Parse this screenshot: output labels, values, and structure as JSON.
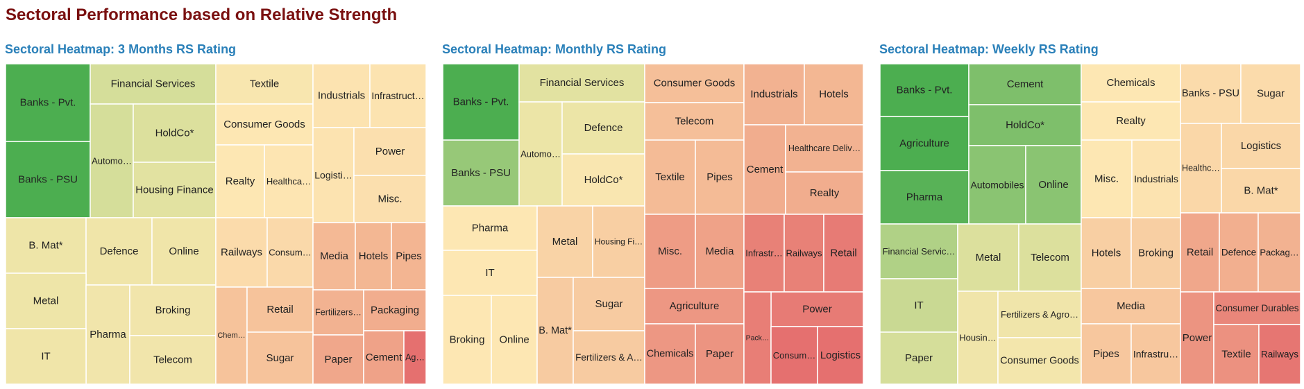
{
  "page_title": "Sectoral Performance based on Relative Strength",
  "chart_data": [
    {
      "type": "treemap",
      "title": "Sectoral Heatmap: 3 Months RS Rating",
      "color_scale": [
        "#4cae50",
        "#e8e4a4",
        "#fde7b3",
        "#f3b592",
        "#e5706f"
      ],
      "tiles": [
        {
          "label": "Banks - Pvt.",
          "score": 0.0
        },
        {
          "label": "Banks - PSU",
          "score": 0.0
        },
        {
          "label": "Financial Services",
          "score": 0.22
        },
        {
          "label": "Automo…",
          "score": 0.22
        },
        {
          "label": "HoldCo*",
          "score": 0.23
        },
        {
          "label": "Housing Finance",
          "score": 0.24
        },
        {
          "label": "Textile",
          "score": 0.44
        },
        {
          "label": "Consumer Goods",
          "score": 0.5
        },
        {
          "label": "Realty",
          "score": 0.5
        },
        {
          "label": "Healthca…",
          "score": 0.51
        },
        {
          "label": "Industrials",
          "score": 0.52
        },
        {
          "label": "Infrastruct…",
          "score": 0.52
        },
        {
          "label": "Logisti…",
          "score": 0.52
        },
        {
          "label": "Power",
          "score": 0.54
        },
        {
          "label": "Misc.",
          "score": 0.54
        },
        {
          "label": "B. Mat*",
          "score": 0.32
        },
        {
          "label": "Defence",
          "score": 0.34
        },
        {
          "label": "Online",
          "score": 0.34
        },
        {
          "label": "Metal",
          "score": 0.32
        },
        {
          "label": "Pharma",
          "score": 0.36
        },
        {
          "label": "Broking",
          "score": 0.36
        },
        {
          "label": "IT",
          "score": 0.34
        },
        {
          "label": "Telecom",
          "score": 0.36
        },
        {
          "label": "Railways",
          "score": 0.56
        },
        {
          "label": "Consum…",
          "score": 0.57
        },
        {
          "label": "Media",
          "score": 0.73
        },
        {
          "label": "Hotels",
          "score": 0.74
        },
        {
          "label": "Pipes",
          "score": 0.75
        },
        {
          "label": "Chem…",
          "score": 0.68
        },
        {
          "label": "Retail",
          "score": 0.68
        },
        {
          "label": "Fertilizers…",
          "score": 0.76
        },
        {
          "label": "Packaging",
          "score": 0.78
        },
        {
          "label": "Sugar",
          "score": 0.68
        },
        {
          "label": "Paper",
          "score": 0.8
        },
        {
          "label": "Cement",
          "score": 0.82
        },
        {
          "label": "Ag…",
          "score": 1.0
        }
      ]
    },
    {
      "type": "treemap",
      "title": "Sectoral Heatmap: Monthly RS Rating",
      "color_scale": [
        "#4cae50",
        "#e8e4a4",
        "#fde7b3",
        "#f3b592",
        "#e5706f"
      ],
      "tiles": [
        {
          "label": "Banks - Pvt.",
          "score": 0.0
        },
        {
          "label": "Banks - PSU",
          "score": 0.12
        },
        {
          "label": "Financial Services",
          "score": 0.24
        },
        {
          "label": "Automo…",
          "score": 0.3
        },
        {
          "label": "Defence",
          "score": 0.3
        },
        {
          "label": "HoldCo*",
          "score": 0.45
        },
        {
          "label": "Pharma",
          "score": 0.5
        },
        {
          "label": "IT",
          "score": 0.5
        },
        {
          "label": "Broking",
          "score": 0.5
        },
        {
          "label": "Online",
          "score": 0.5
        },
        {
          "label": "Metal",
          "score": 0.6
        },
        {
          "label": "Housing Fi…",
          "score": 0.62
        },
        {
          "label": "B. Mat*",
          "score": 0.64
        },
        {
          "label": "Sugar",
          "score": 0.64
        },
        {
          "label": "Fertilizers & A…",
          "score": 0.64
        },
        {
          "label": "Consumer Goods",
          "score": 0.7
        },
        {
          "label": "Telecom",
          "score": 0.7
        },
        {
          "label": "Textile",
          "score": 0.72
        },
        {
          "label": "Pipes",
          "score": 0.72
        },
        {
          "label": "Industrials",
          "score": 0.76
        },
        {
          "label": "Hotels",
          "score": 0.74
        },
        {
          "label": "Cement",
          "score": 0.78
        },
        {
          "label": "Healthcare Deliv…",
          "score": 0.76
        },
        {
          "label": "Realty",
          "score": 0.78
        },
        {
          "label": "Misc.",
          "score": 0.84
        },
        {
          "label": "Media",
          "score": 0.82
        },
        {
          "label": "Agriculture",
          "score": 0.86
        },
        {
          "label": "Chemicals",
          "score": 0.86
        },
        {
          "label": "Paper",
          "score": 0.87
        },
        {
          "label": "Infrastr…",
          "score": 0.94
        },
        {
          "label": "Railways",
          "score": 0.94
        },
        {
          "label": "Retail",
          "score": 0.96
        },
        {
          "label": "Power",
          "score": 0.96
        },
        {
          "label": "Pack…",
          "score": 0.95
        },
        {
          "label": "Consum…",
          "score": 1.0
        },
        {
          "label": "Logistics",
          "score": 1.0
        }
      ]
    },
    {
      "type": "treemap",
      "title": "Sectoral Heatmap: Weekly RS Rating",
      "color_scale": [
        "#4cae50",
        "#e8e4a4",
        "#fde7b3",
        "#f3b592",
        "#e5706f"
      ],
      "tiles": [
        {
          "label": "Banks - Pvt.",
          "score": 0.0
        },
        {
          "label": "Agriculture",
          "score": 0.0
        },
        {
          "label": "Pharma",
          "score": 0.02
        },
        {
          "label": "Cement",
          "score": 0.08
        },
        {
          "label": "HoldCo*",
          "score": 0.08
        },
        {
          "label": "Automobiles",
          "score": 0.1
        },
        {
          "label": "Online",
          "score": 0.1
        },
        {
          "label": "Financial Servic…",
          "score": 0.16
        },
        {
          "label": "IT",
          "score": 0.2
        },
        {
          "label": "Paper",
          "score": 0.22
        },
        {
          "label": "Metal",
          "score": 0.23
        },
        {
          "label": "Telecom",
          "score": 0.23
        },
        {
          "label": "Housin…",
          "score": 0.35
        },
        {
          "label": "Fertilizers & Agro…",
          "score": 0.35
        },
        {
          "label": "Consumer Goods",
          "score": 0.38
        },
        {
          "label": "Chemicals",
          "score": 0.5
        },
        {
          "label": "Realty",
          "score": 0.5
        },
        {
          "label": "Misc.",
          "score": 0.5
        },
        {
          "label": "Industrials",
          "score": 0.52
        },
        {
          "label": "Banks - PSU",
          "score": 0.56
        },
        {
          "label": "Sugar",
          "score": 0.56
        },
        {
          "label": "Healthc…",
          "score": 0.58
        },
        {
          "label": "Logistics",
          "score": 0.58
        },
        {
          "label": "B. Mat*",
          "score": 0.58
        },
        {
          "label": "Hotels",
          "score": 0.62
        },
        {
          "label": "Broking",
          "score": 0.62
        },
        {
          "label": "Media",
          "score": 0.66
        },
        {
          "label": "Pipes",
          "score": 0.66
        },
        {
          "label": "Infrastru…",
          "score": 0.66
        },
        {
          "label": "Retail",
          "score": 0.8
        },
        {
          "label": "Defence",
          "score": 0.77
        },
        {
          "label": "Packag…",
          "score": 0.76
        },
        {
          "label": "Power",
          "score": 0.87
        },
        {
          "label": "Consumer Durables",
          "score": 0.92
        },
        {
          "label": "Textile",
          "score": 0.88
        },
        {
          "label": "Railways",
          "score": 0.98
        }
      ]
    }
  ]
}
